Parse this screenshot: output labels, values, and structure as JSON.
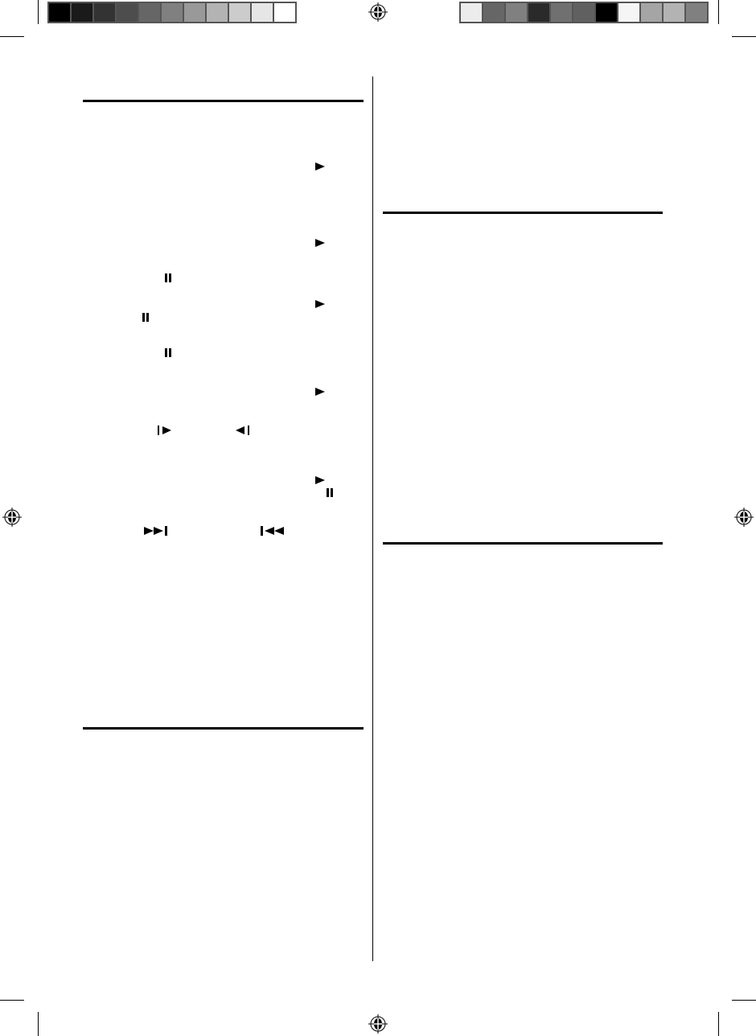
{
  "color_bars": {
    "left": [
      "#000000",
      "#1a1a1a",
      "#333333",
      "#4d4d4d",
      "#666666",
      "#808080",
      "#999999",
      "#b3b3b3",
      "#cccccc",
      "#e6e6e6",
      "#ffffff"
    ],
    "right": [
      "#ececec",
      "#666666",
      "#808080",
      "#2a2a2a",
      "#707070",
      "#606060",
      "#000000",
      "#f5f5f5",
      "#a5a5a5",
      "#b3b3b3",
      "#808080"
    ]
  },
  "icons": [
    "play-icon",
    "pause-icon",
    "step-forward-icon",
    "step-back-icon",
    "skip-next-icon",
    "skip-previous-icon",
    "registration-mark-icon"
  ],
  "colors": {
    "ink": "#000000",
    "bar_border": "#555555"
  }
}
